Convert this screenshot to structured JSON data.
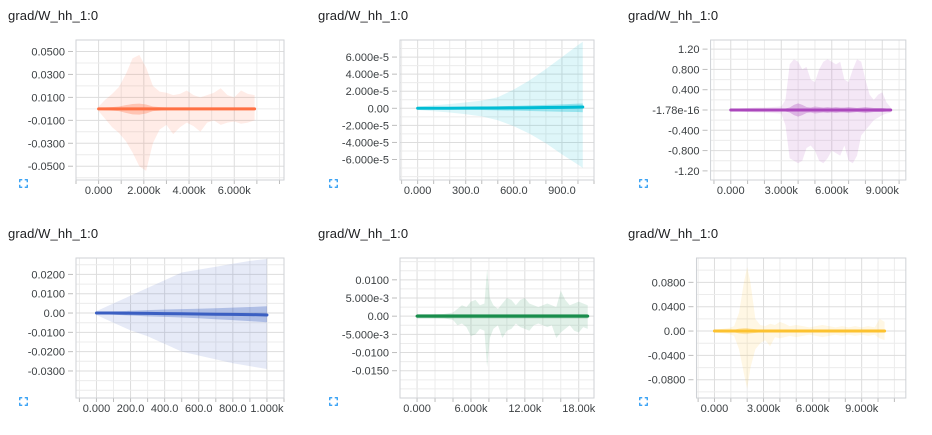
{
  "page": {
    "background": "#ffffff"
  },
  "expand_button": {
    "icon": "fullscreen-icon",
    "color": "#2196f3"
  },
  "grid_style": {
    "minor_line": "#ececec",
    "major_line": "#dddddd",
    "border": "#cfd2d6",
    "tick_mark": "#bdbdbd",
    "label_color": "#3c4043",
    "title_color": "#202124"
  },
  "chart_data": [
    {
      "type": "line",
      "title": "grad/W_hh_1:0",
      "color": "#ff7043",
      "line_width": 3,
      "xlim": [
        -1000,
        8200
      ],
      "ylim": [
        -0.062,
        0.06
      ],
      "x_minor": 1000,
      "y_minor": 0.01,
      "xticks": [
        {
          "v": 0,
          "l": "0.000"
        },
        {
          "v": 2000,
          "l": "2.000k"
        },
        {
          "v": 4000,
          "l": "4.000k"
        },
        {
          "v": 6000,
          "l": "6.000k"
        }
      ],
      "yticks": [
        {
          "v": 0.05,
          "l": "0.0500"
        },
        {
          "v": 0.03,
          "l": "0.0300"
        },
        {
          "v": 0.01,
          "l": "0.0100"
        },
        {
          "v": -0.01,
          "l": "-0.0100"
        },
        {
          "v": -0.03,
          "l": "-0.0300"
        },
        {
          "v": -0.05,
          "l": "-0.0500"
        }
      ],
      "x": [
        0,
        300,
        600,
        900,
        1200,
        1500,
        1800,
        2100,
        2400,
        2700,
        3000,
        3300,
        3600,
        3900,
        4200,
        4500,
        4800,
        5100,
        5400,
        5700,
        6000,
        6300,
        6600,
        6900
      ],
      "band_hi": [
        0.002,
        0.008,
        0.013,
        0.019,
        0.03,
        0.044,
        0.047,
        0.036,
        0.02,
        0.015,
        0.014,
        0.012,
        0.013,
        0.016,
        0.012,
        0.01,
        0.012,
        0.014,
        0.018,
        0.012,
        0.01,
        0.016,
        0.013,
        0.012
      ],
      "band_lo": [
        -0.002,
        -0.009,
        -0.016,
        -0.021,
        -0.028,
        -0.038,
        -0.05,
        -0.054,
        -0.03,
        -0.018,
        -0.014,
        -0.022,
        -0.016,
        -0.012,
        -0.015,
        -0.02,
        -0.012,
        -0.01,
        -0.014,
        -0.012,
        -0.011,
        -0.013,
        -0.012,
        -0.01
      ],
      "inner_hi": [
        0.0008,
        0.0012,
        0.0015,
        0.002,
        0.0032,
        0.0042,
        0.0046,
        0.0038,
        0.002,
        0.0015,
        0.0012,
        0.0012,
        0.0012,
        0.0012,
        0.0012,
        0.0012,
        0.0012,
        0.0012,
        0.0012,
        0.0012,
        0.0012,
        0.0012,
        0.0012,
        0.0012
      ],
      "inner_lo": [
        -0.0008,
        -0.0012,
        -0.0015,
        -0.002,
        -0.0035,
        -0.0048,
        -0.005,
        -0.004,
        -0.002,
        -0.0015,
        -0.0012,
        -0.0012,
        -0.0012,
        -0.0012,
        -0.0012,
        -0.0012,
        -0.0012,
        -0.0012,
        -0.0012,
        -0.0012,
        -0.0012,
        -0.0012,
        -0.0012,
        -0.0012
      ],
      "mean": 0
    },
    {
      "type": "line",
      "title": "grad/W_hh_1:0",
      "color": "#00bcd4",
      "line_width": 3,
      "xlim": [
        -110,
        1100
      ],
      "ylim": [
        -8.4e-05,
        8e-05
      ],
      "x_minor": 100,
      "y_minor": 1e-05,
      "xticks": [
        {
          "v": 0,
          "l": "0.000"
        },
        {
          "v": 300,
          "l": "300.0"
        },
        {
          "v": 600,
          "l": "600.0"
        },
        {
          "v": 900,
          "l": "900.0"
        }
      ],
      "yticks": [
        {
          "v": 6e-05,
          "l": "6.000e-5"
        },
        {
          "v": 4e-05,
          "l": "4.000e-5"
        },
        {
          "v": 2e-05,
          "l": "2.000e-5"
        },
        {
          "v": 0,
          "l": "0.00"
        },
        {
          "v": -2e-05,
          "l": "-2.000e-5"
        },
        {
          "v": -4e-05,
          "l": "-4.000e-5"
        },
        {
          "v": -6e-05,
          "l": "-6.000e-5"
        }
      ],
      "x": [
        0,
        100,
        200,
        300,
        400,
        500,
        600,
        700,
        800,
        900,
        1000,
        1030
      ],
      "band_hi": [
        2e-06,
        3.5e-06,
        5e-06,
        7e-06,
        9e-06,
        1.3e-05,
        2.2e-05,
        3.3e-05,
        4.6e-05,
        6e-05,
        7.4e-05,
        7.8e-05
      ],
      "band_lo": [
        -2e-06,
        -3.5e-06,
        -5e-06,
        -7e-06,
        -9.5e-06,
        -1.4e-05,
        -2.1e-05,
        -3e-05,
        -4.1e-05,
        -5.4e-05,
        -6.6e-05,
        -7e-05
      ],
      "inner_hi": [
        6e-07,
        9e-07,
        1.2e-06,
        1.6e-06,
        2e-06,
        2.4e-06,
        2.9e-06,
        3.4e-06,
        4e-06,
        4.6e-06,
        5.4e-06,
        5.6e-06
      ],
      "inner_lo": [
        -6e-07,
        -9e-07,
        -1.2e-06,
        -1.6e-06,
        -2e-06,
        -2.4e-06,
        -2.8e-06,
        -3.2e-06,
        -3.6e-06,
        -4e-06,
        -4.4e-06,
        -4.6e-06
      ],
      "mean": [
        0,
        0,
        1e-07,
        2e-07,
        3e-07,
        4e-07,
        5e-07,
        7e-07,
        9e-07,
        1.1e-06,
        1.4e-06,
        1.5e-06
      ]
    },
    {
      "type": "line",
      "title": "grad/W_hh_1:0",
      "color": "#ab47bc",
      "line_width": 3,
      "xlim": [
        -1200,
        10400
      ],
      "ylim": [
        -1.38,
        1.38
      ],
      "x_minor": 1000,
      "y_minor": 0.2,
      "xticks": [
        {
          "v": 0,
          "l": "0.000"
        },
        {
          "v": 3000,
          "l": "3.000k"
        },
        {
          "v": 6000,
          "l": "6.000k"
        },
        {
          "v": 9000,
          "l": "9.000k"
        }
      ],
      "yticks": [
        {
          "v": 1.2,
          "l": "1.20"
        },
        {
          "v": 0.8,
          "l": "0.800"
        },
        {
          "v": 0.4,
          "l": "0.400"
        },
        {
          "v": 0,
          "l": "-1.78e-16"
        },
        {
          "v": -0.4,
          "l": "-0.400"
        },
        {
          "v": -0.8,
          "l": "-0.800"
        },
        {
          "v": -1.2,
          "l": "-1.20"
        }
      ],
      "x": [
        0,
        500,
        1000,
        1500,
        2000,
        2500,
        3000,
        3250,
        3500,
        3750,
        4000,
        4250,
        4500,
        4750,
        5000,
        5250,
        5500,
        5750,
        6000,
        6250,
        6500,
        6750,
        7000,
        7250,
        7500,
        7750,
        8000,
        8250,
        8500,
        8750,
        9000,
        9250,
        9500
      ],
      "band_hi": [
        0.02,
        0.03,
        0.04,
        0.05,
        0.05,
        0.06,
        0.07,
        0.2,
        0.9,
        1.0,
        0.95,
        0.8,
        0.85,
        0.6,
        0.55,
        0.8,
        0.95,
        1.0,
        0.95,
        0.9,
        0.95,
        0.6,
        0.55,
        0.8,
        1.0,
        0.95,
        0.6,
        0.3,
        0.2,
        0.3,
        0.35,
        0.15,
        0.05
      ],
      "band_lo": [
        -0.02,
        -0.03,
        -0.04,
        -0.05,
        -0.05,
        -0.06,
        -0.07,
        -0.3,
        -0.95,
        -1.0,
        -1.05,
        -1.0,
        -0.75,
        -0.7,
        -0.8,
        -1.0,
        -1.05,
        -0.95,
        -0.8,
        -0.85,
        -0.9,
        -0.7,
        -1.0,
        -1.05,
        -0.9,
        -0.5,
        -0.4,
        -0.3,
        -0.2,
        -0.15,
        -0.1,
        -0.07,
        -0.05
      ],
      "inner_hi": [
        0.01,
        0.012,
        0.015,
        0.018,
        0.02,
        0.02,
        0.025,
        0.03,
        0.05,
        0.1,
        0.13,
        0.1,
        0.06,
        0.05,
        0.07,
        0.06,
        0.05,
        0.06,
        0.05,
        0.06,
        0.05,
        0.05,
        0.06,
        0.05,
        0.04,
        0.05,
        0.06,
        0.05,
        0.04,
        0.04,
        0.04,
        0.03,
        0.03
      ],
      "inner_lo": [
        -0.01,
        -0.012,
        -0.015,
        -0.018,
        -0.02,
        -0.02,
        -0.025,
        -0.03,
        -0.05,
        -0.1,
        -0.13,
        -0.1,
        -0.06,
        -0.05,
        -0.07,
        -0.06,
        -0.05,
        -0.06,
        -0.05,
        -0.06,
        -0.05,
        -0.05,
        -0.06,
        -0.05,
        -0.04,
        -0.05,
        -0.06,
        -0.05,
        -0.04,
        -0.04,
        -0.04,
        -0.03,
        -0.03
      ],
      "mean": 0
    },
    {
      "type": "line",
      "title": "grad/W_hh_1:0",
      "color": "#3b5fc2",
      "line_width": 3,
      "xlim": [
        -120,
        1100
      ],
      "ylim": [
        -0.044,
        0.0285
      ],
      "x_minor": 100,
      "y_minor": 0.005,
      "xticks": [
        {
          "v": 0,
          "l": "0.000"
        },
        {
          "v": 200,
          "l": "200.0"
        },
        {
          "v": 400,
          "l": "400.0"
        },
        {
          "v": 600,
          "l": "600.0"
        },
        {
          "v": 800,
          "l": "800.0"
        },
        {
          "v": 1000,
          "l": "1.000k"
        }
      ],
      "yticks": [
        {
          "v": 0.02,
          "l": "0.0200"
        },
        {
          "v": 0.01,
          "l": "0.0100"
        },
        {
          "v": 0,
          "l": "0.00"
        },
        {
          "v": -0.01,
          "l": "-0.0100"
        },
        {
          "v": -0.02,
          "l": "-0.0200"
        },
        {
          "v": -0.03,
          "l": "-0.0300"
        }
      ],
      "x": [
        0,
        100,
        200,
        300,
        400,
        500,
        600,
        700,
        800,
        900,
        1000
      ],
      "band_hi": [
        0.001,
        0.005,
        0.009,
        0.013,
        0.017,
        0.021,
        0.0225,
        0.024,
        0.0255,
        0.027,
        0.028
      ],
      "band_lo": [
        -0.001,
        -0.005,
        -0.009,
        -0.012,
        -0.016,
        -0.02,
        -0.022,
        -0.024,
        -0.026,
        -0.0275,
        -0.029
      ],
      "inner_hi": [
        0.0004,
        0.0008,
        0.0012,
        0.0015,
        0.0018,
        0.002,
        0.0022,
        0.0025,
        0.0028,
        0.0031,
        0.0035
      ],
      "inner_lo": [
        -0.0004,
        -0.0009,
        -0.0013,
        -0.0017,
        -0.002,
        -0.0023,
        -0.0027,
        -0.0032,
        -0.0037,
        -0.0042,
        -0.0048
      ],
      "mean": [
        0,
        0,
        -0.0001,
        -0.0002,
        -0.0003,
        -0.0004,
        -0.0005,
        -0.0006,
        -0.0007,
        -0.0008,
        -0.001
      ]
    },
    {
      "type": "line",
      "title": "grad/W_hh_1:0",
      "color": "#188d4c",
      "line_width": 3,
      "xlim": [
        -1900,
        19700
      ],
      "ylim": [
        -0.0225,
        0.016
      ],
      "x_minor": 2000,
      "y_minor": 0.0025,
      "xticks": [
        {
          "v": 0,
          "l": "0.000"
        },
        {
          "v": 6000,
          "l": "6.000k"
        },
        {
          "v": 12000,
          "l": "12.00k"
        },
        {
          "v": 18000,
          "l": "18.00k"
        }
      ],
      "yticks": [
        {
          "v": 0.01,
          "l": "0.0100"
        },
        {
          "v": 0.005,
          "l": "5.000e-3"
        },
        {
          "v": 0,
          "l": "0.00"
        },
        {
          "v": -0.005,
          "l": "-5.000e-3"
        },
        {
          "v": -0.01,
          "l": "-0.0100"
        },
        {
          "v": -0.015,
          "l": "-0.0150"
        }
      ],
      "x": [
        0,
        1000,
        2000,
        3000,
        4000,
        4500,
        5000,
        5500,
        6000,
        6500,
        7000,
        7500,
        7800,
        8100,
        8500,
        9000,
        9500,
        10000,
        10500,
        11000,
        11500,
        12000,
        12500,
        13000,
        13500,
        14000,
        14500,
        15000,
        15500,
        16000,
        16500,
        17000,
        17500,
        18000,
        18500,
        19000
      ],
      "band_hi": [
        0.0004,
        0.0004,
        0.0005,
        0.0006,
        0.001,
        0.002,
        0.003,
        0.0025,
        0.004,
        0.0045,
        0.003,
        0.0035,
        0.013,
        0.005,
        0.003,
        0.002,
        0.0035,
        0.005,
        0.0045,
        0.003,
        0.0045,
        0.005,
        0.0035,
        0.003,
        0.0025,
        0.003,
        0.0035,
        0.003,
        0.0025,
        0.007,
        0.0045,
        0.003,
        0.0035,
        0.004,
        0.0035,
        0.003
      ],
      "band_lo": [
        -0.0004,
        -0.0004,
        -0.0005,
        -0.0006,
        -0.001,
        -0.0025,
        -0.002,
        -0.003,
        -0.0055,
        -0.005,
        -0.0035,
        -0.004,
        -0.014,
        -0.006,
        -0.0035,
        -0.0025,
        -0.006,
        -0.004,
        -0.0035,
        -0.002,
        -0.003,
        -0.0035,
        -0.004,
        -0.0025,
        -0.002,
        -0.0025,
        -0.003,
        -0.0025,
        -0.006,
        -0.0045,
        -0.0035,
        -0.0025,
        -0.004,
        -0.0045,
        -0.003,
        -0.0035
      ],
      "inner_hi": 0.0006,
      "inner_lo": -0.0006,
      "mean": 0
    },
    {
      "type": "line",
      "title": "grad/W_hh_1:0",
      "color": "#fcc22f",
      "line_width": 3,
      "xlim": [
        -1100,
        11700
      ],
      "ylim": [
        -0.11,
        0.12
      ],
      "x_minor": 1000,
      "y_minor": 0.02,
      "xticks": [
        {
          "v": 0,
          "l": "0.000"
        },
        {
          "v": 3000,
          "l": "3.000k"
        },
        {
          "v": 6000,
          "l": "6.000k"
        },
        {
          "v": 9000,
          "l": "9.000k"
        }
      ],
      "yticks": [
        {
          "v": 0.08,
          "l": "0.0800"
        },
        {
          "v": 0.04,
          "l": "0.0400"
        },
        {
          "v": 0,
          "l": "0.00"
        },
        {
          "v": -0.04,
          "l": "-0.0400"
        },
        {
          "v": -0.08,
          "l": "-0.0800"
        }
      ],
      "x": [
        0,
        300,
        600,
        900,
        1200,
        1500,
        1800,
        2000,
        2200,
        2500,
        2800,
        3100,
        3400,
        3700,
        4000,
        4300,
        4600,
        5000,
        5400,
        5800,
        6200,
        6600,
        7000,
        7400,
        7800,
        8200,
        8600,
        9000,
        9400,
        9800,
        10100,
        10400
      ],
      "band_hi": [
        0.002,
        0.003,
        0.004,
        0.005,
        0.008,
        0.03,
        0.08,
        0.105,
        0.08,
        0.02,
        0.01,
        0.008,
        0.012,
        0.01,
        0.015,
        0.012,
        0.008,
        0.01,
        0.008,
        0.006,
        0.008,
        0.01,
        0.008,
        0.006,
        0.008,
        0.006,
        0.008,
        0.006,
        0.008,
        0.006,
        0.02,
        0.015
      ],
      "band_lo": [
        -0.002,
        -0.003,
        -0.004,
        -0.005,
        -0.008,
        -0.03,
        -0.07,
        -0.095,
        -0.06,
        -0.03,
        -0.02,
        -0.015,
        -0.025,
        -0.01,
        -0.012,
        -0.01,
        -0.008,
        -0.01,
        -0.008,
        -0.006,
        -0.008,
        -0.01,
        -0.008,
        -0.006,
        -0.008,
        -0.006,
        -0.008,
        -0.006,
        -0.008,
        -0.006,
        -0.012,
        -0.015
      ],
      "inner_hi": [
        0.0015,
        0.0015,
        0.0015,
        0.0015,
        0.002,
        0.004,
        0.005,
        0.005,
        0.004,
        0.003,
        0.002,
        0.0015,
        0.0015,
        0.0015,
        0.0015,
        0.0015,
        0.0015,
        0.0015,
        0.0015,
        0.0015,
        0.0015,
        0.0015,
        0.0015,
        0.0015,
        0.0015,
        0.0015,
        0.0015,
        0.0015,
        0.0015,
        0.0015,
        0.0015,
        0.0015
      ],
      "inner_lo": [
        -0.0015,
        -0.0015,
        -0.0015,
        -0.0015,
        -0.002,
        -0.004,
        -0.005,
        -0.005,
        -0.004,
        -0.003,
        -0.002,
        -0.0015,
        -0.0015,
        -0.0015,
        -0.0015,
        -0.0015,
        -0.0015,
        -0.0015,
        -0.0015,
        -0.0015,
        -0.0015,
        -0.0015,
        -0.0015,
        -0.0015,
        -0.0015,
        -0.0015,
        -0.0015,
        -0.0015,
        -0.0015,
        -0.0015,
        -0.0015,
        -0.0015
      ],
      "mean": 0
    }
  ]
}
